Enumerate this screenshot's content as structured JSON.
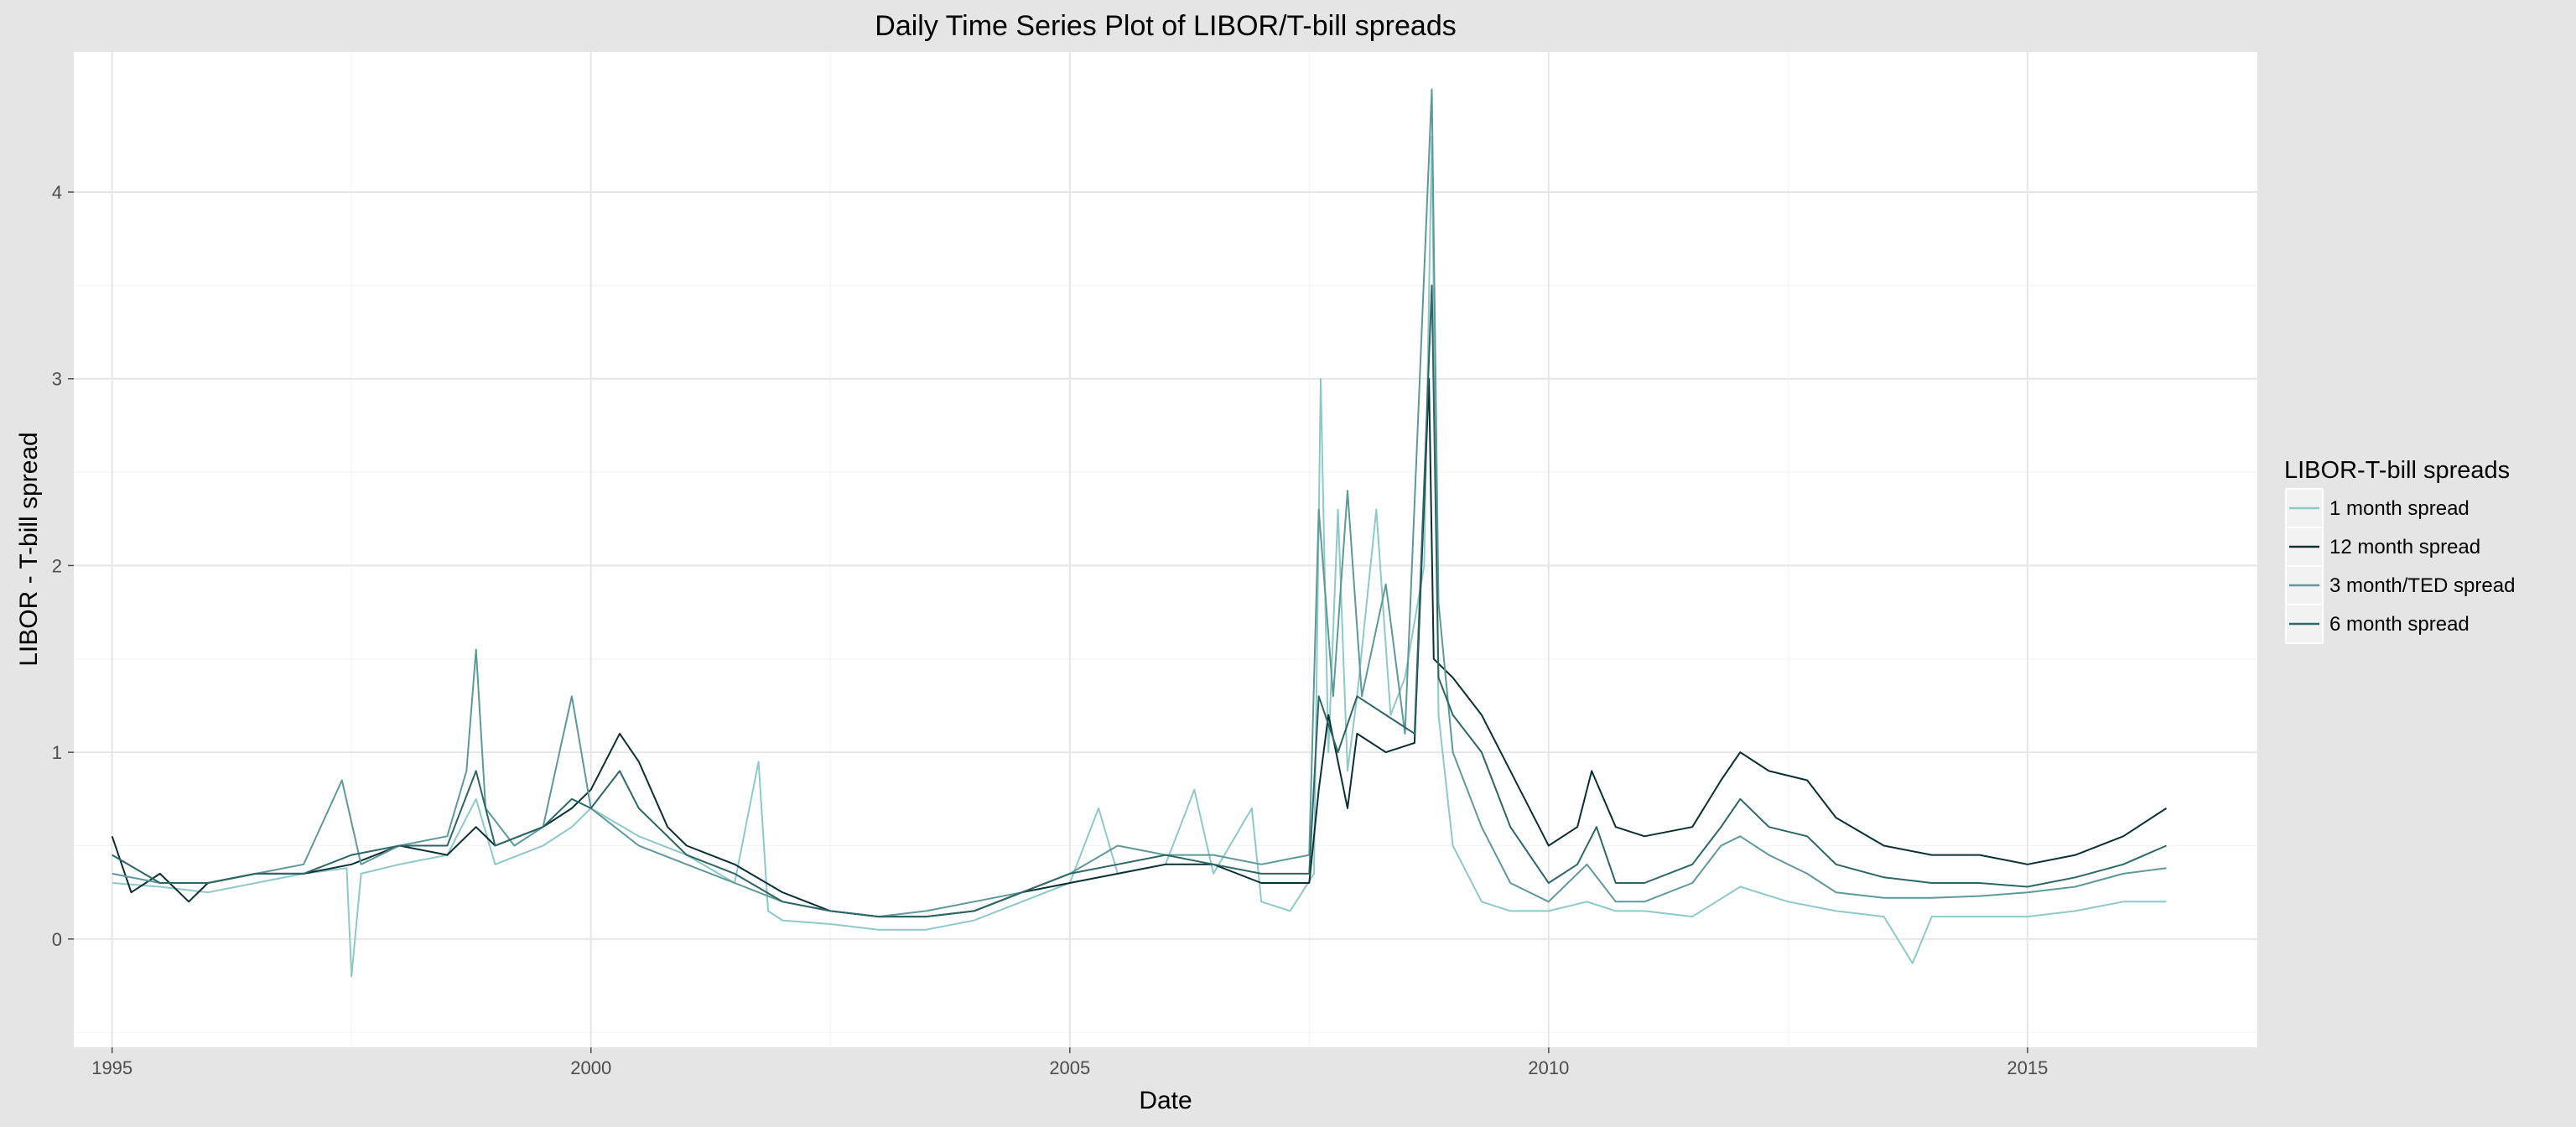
{
  "chart_data": {
    "type": "line",
    "title": "Daily Time Series Plot of LIBOR/T-bill spreads",
    "xlabel": "Date",
    "ylabel": "LIBOR - T-bill spread",
    "xlim": [
      1994.6,
      2017.4
    ],
    "ylim": [
      -0.58,
      4.75
    ],
    "x_ticks": [
      1995,
      2000,
      2005,
      2010,
      2015
    ],
    "x_tick_labels": [
      "1995",
      "2000",
      "2005",
      "2010",
      "2015"
    ],
    "y_ticks": [
      0,
      1,
      2,
      3,
      4
    ],
    "y_tick_labels": [
      "0",
      "1",
      "2",
      "3",
      "4"
    ],
    "grid": true,
    "legend": {
      "title": "LIBOR-T-bill spreads",
      "position": "right"
    },
    "background": "#e5e5e5",
    "panel_background": "#ffffff",
    "series": [
      {
        "name": "1 month spread",
        "color": "#8ec9c9",
        "points": [
          [
            1995.0,
            0.3
          ],
          [
            1995.5,
            0.28
          ],
          [
            1996.0,
            0.25
          ],
          [
            1996.5,
            0.3
          ],
          [
            1997.0,
            0.35
          ],
          [
            1997.45,
            0.38
          ],
          [
            1997.5,
            -0.2
          ],
          [
            1997.6,
            0.35
          ],
          [
            1998.0,
            0.4
          ],
          [
            1998.5,
            0.45
          ],
          [
            1998.8,
            0.75
          ],
          [
            1999.0,
            0.4
          ],
          [
            1999.5,
            0.5
          ],
          [
            1999.8,
            0.6
          ],
          [
            2000.0,
            0.7
          ],
          [
            2000.5,
            0.55
          ],
          [
            2001.0,
            0.45
          ],
          [
            2001.5,
            0.3
          ],
          [
            2001.75,
            0.95
          ],
          [
            2001.85,
            0.15
          ],
          [
            2002.0,
            0.1
          ],
          [
            2002.5,
            0.08
          ],
          [
            2003.0,
            0.05
          ],
          [
            2003.5,
            0.05
          ],
          [
            2004.0,
            0.1
          ],
          [
            2004.5,
            0.2
          ],
          [
            2005.0,
            0.3
          ],
          [
            2005.3,
            0.7
          ],
          [
            2005.5,
            0.35
          ],
          [
            2006.0,
            0.4
          ],
          [
            2006.3,
            0.8
          ],
          [
            2006.5,
            0.35
          ],
          [
            2006.9,
            0.7
          ],
          [
            2007.0,
            0.2
          ],
          [
            2007.3,
            0.15
          ],
          [
            2007.55,
            0.35
          ],
          [
            2007.62,
            3.0
          ],
          [
            2007.7,
            1.0
          ],
          [
            2007.8,
            2.3
          ],
          [
            2007.9,
            0.9
          ],
          [
            2008.0,
            1.3
          ],
          [
            2008.2,
            2.3
          ],
          [
            2008.35,
            1.2
          ],
          [
            2008.5,
            1.4
          ],
          [
            2008.7,
            2.0
          ],
          [
            2008.78,
            4.3
          ],
          [
            2008.85,
            1.2
          ],
          [
            2009.0,
            0.5
          ],
          [
            2009.3,
            0.2
          ],
          [
            2009.6,
            0.15
          ],
          [
            2010.0,
            0.15
          ],
          [
            2010.4,
            0.2
          ],
          [
            2010.7,
            0.15
          ],
          [
            2011.0,
            0.15
          ],
          [
            2011.5,
            0.12
          ],
          [
            2012.0,
            0.28
          ],
          [
            2012.5,
            0.2
          ],
          [
            2013.0,
            0.15
          ],
          [
            2013.5,
            0.12
          ],
          [
            2013.8,
            -0.13
          ],
          [
            2014.0,
            0.12
          ],
          [
            2014.5,
            0.12
          ],
          [
            2015.0,
            0.12
          ],
          [
            2015.5,
            0.15
          ],
          [
            2016.0,
            0.2
          ],
          [
            2016.45,
            0.2
          ]
        ]
      },
      {
        "name": "12 month spread",
        "color": "#0b3033",
        "points": [
          [
            1995.0,
            0.55
          ],
          [
            1995.2,
            0.25
          ],
          [
            1995.5,
            0.35
          ],
          [
            1995.8,
            0.2
          ],
          [
            1996.0,
            0.3
          ],
          [
            1996.5,
            0.35
          ],
          [
            1997.0,
            0.35
          ],
          [
            1997.5,
            0.4
          ],
          [
            1998.0,
            0.5
          ],
          [
            1998.5,
            0.45
          ],
          [
            1998.8,
            0.6
          ],
          [
            1999.0,
            0.5
          ],
          [
            1999.5,
            0.6
          ],
          [
            1999.8,
            0.7
          ],
          [
            2000.0,
            0.8
          ],
          [
            2000.3,
            1.1
          ],
          [
            2000.5,
            0.95
          ],
          [
            2000.8,
            0.6
          ],
          [
            2001.0,
            0.5
          ],
          [
            2001.5,
            0.4
          ],
          [
            2002.0,
            0.25
          ],
          [
            2002.5,
            0.15
          ],
          [
            2003.0,
            0.12
          ],
          [
            2003.5,
            0.12
          ],
          [
            2004.0,
            0.15
          ],
          [
            2004.5,
            0.25
          ],
          [
            2005.0,
            0.3
          ],
          [
            2005.5,
            0.35
          ],
          [
            2006.0,
            0.4
          ],
          [
            2006.5,
            0.4
          ],
          [
            2007.0,
            0.3
          ],
          [
            2007.5,
            0.3
          ],
          [
            2007.6,
            0.8
          ],
          [
            2007.7,
            1.2
          ],
          [
            2007.9,
            0.7
          ],
          [
            2008.0,
            1.1
          ],
          [
            2008.3,
            1.0
          ],
          [
            2008.6,
            1.05
          ],
          [
            2008.75,
            3.0
          ],
          [
            2008.8,
            1.5
          ],
          [
            2009.0,
            1.4
          ],
          [
            2009.3,
            1.2
          ],
          [
            2009.6,
            0.9
          ],
          [
            2009.9,
            0.6
          ],
          [
            2010.0,
            0.5
          ],
          [
            2010.3,
            0.6
          ],
          [
            2010.45,
            0.9
          ],
          [
            2010.7,
            0.6
          ],
          [
            2011.0,
            0.55
          ],
          [
            2011.5,
            0.6
          ],
          [
            2011.8,
            0.85
          ],
          [
            2012.0,
            1.0
          ],
          [
            2012.3,
            0.9
          ],
          [
            2012.7,
            0.85
          ],
          [
            2013.0,
            0.65
          ],
          [
            2013.5,
            0.5
          ],
          [
            2014.0,
            0.45
          ],
          [
            2014.5,
            0.45
          ],
          [
            2015.0,
            0.4
          ],
          [
            2015.5,
            0.45
          ],
          [
            2016.0,
            0.55
          ],
          [
            2016.45,
            0.7
          ]
        ]
      },
      {
        "name": "3 month/TED spread",
        "color": "#5e9999",
        "points": [
          [
            1995.0,
            0.35
          ],
          [
            1995.5,
            0.3
          ],
          [
            1996.0,
            0.3
          ],
          [
            1996.5,
            0.35
          ],
          [
            1997.0,
            0.4
          ],
          [
            1997.4,
            0.85
          ],
          [
            1997.6,
            0.4
          ],
          [
            1998.0,
            0.5
          ],
          [
            1998.5,
            0.55
          ],
          [
            1998.7,
            0.9
          ],
          [
            1998.8,
            1.55
          ],
          [
            1998.9,
            0.7
          ],
          [
            1999.2,
            0.5
          ],
          [
            1999.5,
            0.6
          ],
          [
            1999.8,
            1.3
          ],
          [
            2000.0,
            0.7
          ],
          [
            2000.5,
            0.5
          ],
          [
            2001.0,
            0.4
          ],
          [
            2001.5,
            0.3
          ],
          [
            2002.0,
            0.2
          ],
          [
            2002.5,
            0.15
          ],
          [
            2003.0,
            0.12
          ],
          [
            2003.5,
            0.15
          ],
          [
            2004.0,
            0.2
          ],
          [
            2004.5,
            0.25
          ],
          [
            2005.0,
            0.35
          ],
          [
            2005.5,
            0.5
          ],
          [
            2006.0,
            0.45
          ],
          [
            2006.5,
            0.45
          ],
          [
            2007.0,
            0.4
          ],
          [
            2007.5,
            0.45
          ],
          [
            2007.6,
            2.3
          ],
          [
            2007.75,
            1.3
          ],
          [
            2007.9,
            2.4
          ],
          [
            2008.05,
            1.3
          ],
          [
            2008.3,
            1.9
          ],
          [
            2008.5,
            1.1
          ],
          [
            2008.78,
            4.55
          ],
          [
            2008.85,
            1.8
          ],
          [
            2009.0,
            1.0
          ],
          [
            2009.3,
            0.6
          ],
          [
            2009.6,
            0.3
          ],
          [
            2010.0,
            0.2
          ],
          [
            2010.4,
            0.4
          ],
          [
            2010.7,
            0.2
          ],
          [
            2011.0,
            0.2
          ],
          [
            2011.5,
            0.3
          ],
          [
            2011.8,
            0.5
          ],
          [
            2012.0,
            0.55
          ],
          [
            2012.3,
            0.45
          ],
          [
            2012.7,
            0.35
          ],
          [
            2013.0,
            0.25
          ],
          [
            2013.5,
            0.22
          ],
          [
            2014.0,
            0.22
          ],
          [
            2014.5,
            0.23
          ],
          [
            2015.0,
            0.25
          ],
          [
            2015.5,
            0.28
          ],
          [
            2016.0,
            0.35
          ],
          [
            2016.45,
            0.38
          ]
        ]
      },
      {
        "name": "6 month spread",
        "color": "#2d6666",
        "points": [
          [
            1995.0,
            0.45
          ],
          [
            1995.5,
            0.3
          ],
          [
            1996.0,
            0.3
          ],
          [
            1996.5,
            0.35
          ],
          [
            1997.0,
            0.35
          ],
          [
            1997.5,
            0.45
          ],
          [
            1998.0,
            0.5
          ],
          [
            1998.5,
            0.5
          ],
          [
            1998.8,
            0.9
          ],
          [
            1999.0,
            0.5
          ],
          [
            1999.5,
            0.6
          ],
          [
            1999.8,
            0.75
          ],
          [
            2000.0,
            0.7
          ],
          [
            2000.3,
            0.9
          ],
          [
            2000.5,
            0.7
          ],
          [
            2001.0,
            0.45
          ],
          [
            2001.5,
            0.35
          ],
          [
            2002.0,
            0.2
          ],
          [
            2002.5,
            0.15
          ],
          [
            2003.0,
            0.12
          ],
          [
            2003.5,
            0.12
          ],
          [
            2004.0,
            0.15
          ],
          [
            2004.5,
            0.25
          ],
          [
            2005.0,
            0.35
          ],
          [
            2005.5,
            0.4
          ],
          [
            2006.0,
            0.45
          ],
          [
            2006.5,
            0.4
          ],
          [
            2007.0,
            0.35
          ],
          [
            2007.5,
            0.35
          ],
          [
            2007.6,
            1.3
          ],
          [
            2007.8,
            1.0
          ],
          [
            2008.0,
            1.3
          ],
          [
            2008.3,
            1.2
          ],
          [
            2008.6,
            1.1
          ],
          [
            2008.78,
            3.5
          ],
          [
            2008.85,
            1.4
          ],
          [
            2009.0,
            1.2
          ],
          [
            2009.3,
            1.0
          ],
          [
            2009.6,
            0.6
          ],
          [
            2010.0,
            0.3
          ],
          [
            2010.3,
            0.4
          ],
          [
            2010.5,
            0.6
          ],
          [
            2010.7,
            0.3
          ],
          [
            2011.0,
            0.3
          ],
          [
            2011.5,
            0.4
          ],
          [
            2011.8,
            0.6
          ],
          [
            2012.0,
            0.75
          ],
          [
            2012.3,
            0.6
          ],
          [
            2012.7,
            0.55
          ],
          [
            2013.0,
            0.4
          ],
          [
            2013.5,
            0.33
          ],
          [
            2014.0,
            0.3
          ],
          [
            2014.5,
            0.3
          ],
          [
            2015.0,
            0.28
          ],
          [
            2015.5,
            0.33
          ],
          [
            2016.0,
            0.4
          ],
          [
            2016.45,
            0.5
          ]
        ]
      }
    ]
  }
}
